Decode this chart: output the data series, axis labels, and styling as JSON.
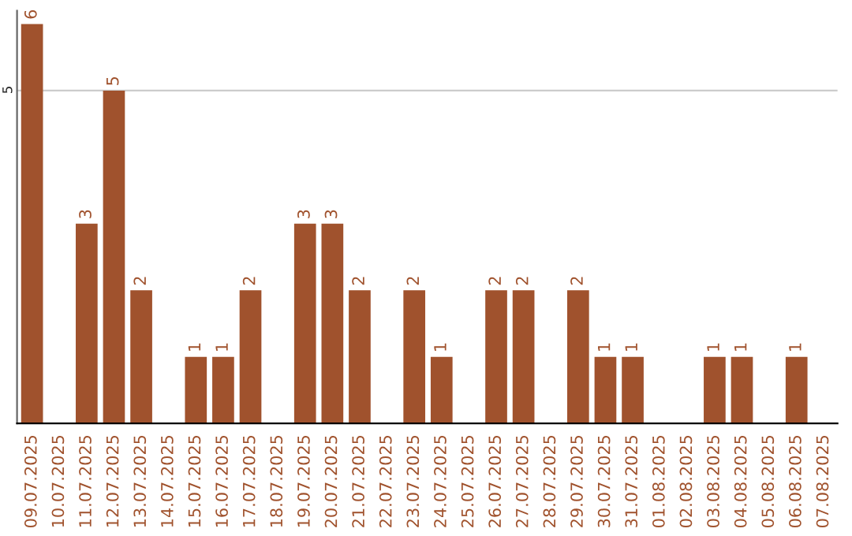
{
  "chart_data": {
    "type": "bar",
    "categories": [
      "09.07.2025",
      "10.07.2025",
      "11.07.2025",
      "12.07.2025",
      "13.07.2025",
      "14.07.2025",
      "15.07.2025",
      "16.07.2025",
      "17.07.2025",
      "18.07.2025",
      "19.07.2025",
      "20.07.2025",
      "21.07.2025",
      "22.07.2025",
      "23.07.2025",
      "24.07.2025",
      "25.07.2025",
      "26.07.2025",
      "27.07.2025",
      "28.07.2025",
      "29.07.2025",
      "30.07.2025",
      "31.07.2025",
      "01.08.2025",
      "02.08.2025",
      "03.08.2025",
      "04.08.2025",
      "05.08.2025",
      "06.08.2025",
      "07.08.2025"
    ],
    "values": [
      6,
      0,
      3,
      5,
      2,
      0,
      1,
      1,
      2,
      0,
      3,
      3,
      2,
      0,
      2,
      1,
      0,
      2,
      2,
      0,
      2,
      1,
      1,
      0,
      0,
      1,
      1,
      0,
      1,
      0
    ],
    "value_labels": [
      "6",
      null,
      "3",
      "5",
      "2",
      null,
      "1",
      "1",
      "2",
      null,
      "3",
      "3",
      "2",
      null,
      "2",
      "1",
      null,
      "2",
      "2",
      null,
      "2",
      "1",
      "1",
      null,
      null,
      "1",
      "1",
      null,
      "1",
      null
    ],
    "color": "#a0522d",
    "ylim": [
      0,
      6.2
    ],
    "yticks": [
      5
    ],
    "grid": "y",
    "legend": false
  }
}
